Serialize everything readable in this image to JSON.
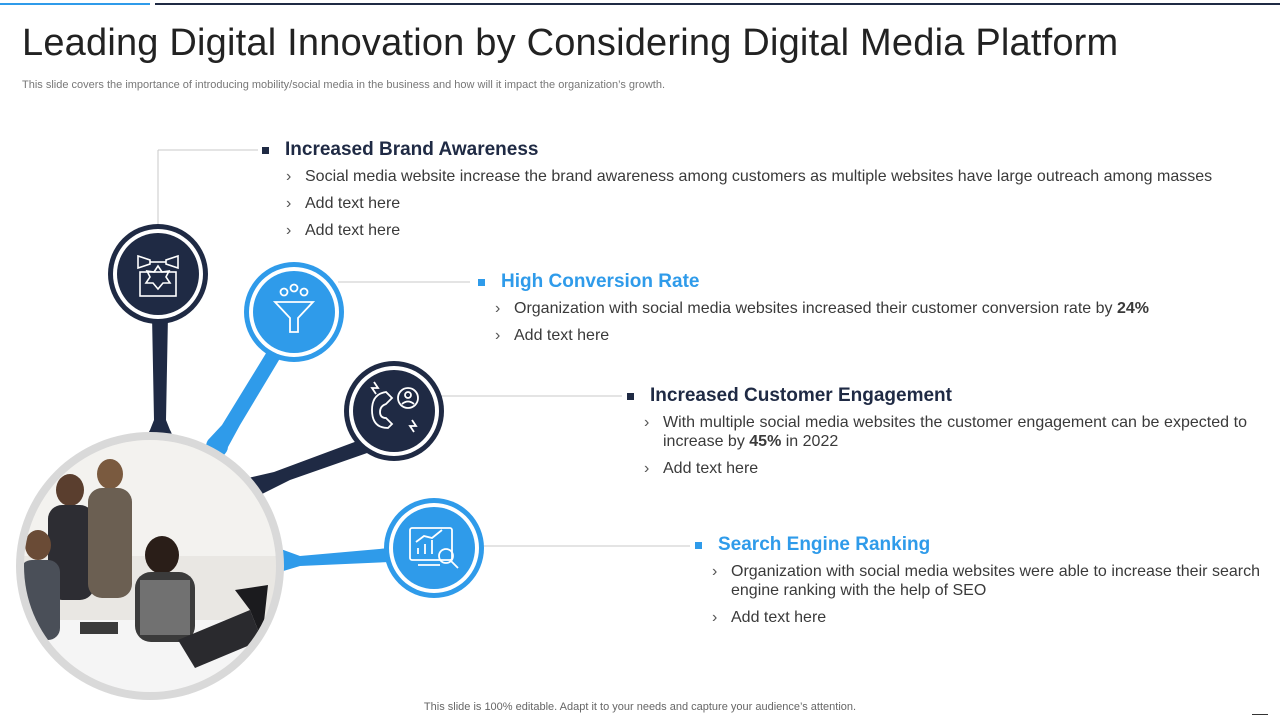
{
  "header": {
    "title": "Leading Digital Innovation by Considering Digital Media Platform",
    "subtitle": "This slide covers the importance of introducing mobility/social media in the business and how will it impact the organization’s growth."
  },
  "sections": [
    {
      "title": "Increased Brand Awareness",
      "color": "#1f2a44",
      "icon": "megaphone-badge-icon",
      "bullets": [
        {
          "text": "Social media website increase the brand awareness among customers as multiple websites have large outreach among masses"
        },
        {
          "text": "Add text here"
        },
        {
          "text": "Add text here"
        }
      ]
    },
    {
      "title": "High Conversion Rate",
      "color": "#2f9bea",
      "icon": "funnel-icon",
      "bullets": [
        {
          "pre": "Organization with social media websites increased their customer  conversion rate by ",
          "bold": "24%",
          "post": ""
        },
        {
          "text": "Add text here"
        }
      ]
    },
    {
      "title": "Increased Customer Engagement",
      "color": "#1f2a44",
      "icon": "magnet-user-icon",
      "bullets": [
        {
          "pre": "With multiple social media websites the customer engagement can be expected to increase by ",
          "bold": "45%",
          "post": " in 2022"
        },
        {
          "text": "Add text here"
        }
      ]
    },
    {
      "title": "Search Engine Ranking",
      "color": "#2f9bea",
      "icon": "seo-chart-magnifier-icon",
      "bullets": [
        {
          "text": "Organization with social media websites were able to increase their search engine ranking with the help of SEO"
        },
        {
          "text": "Add text here"
        }
      ]
    }
  ],
  "photo": {
    "description_icon": "team-meeting-photo"
  },
  "footer": {
    "text": "This slide is 100% editable. Adapt it to your needs and capture your audience’s attention."
  },
  "colors": {
    "dark": "#1f2a44",
    "blue": "#2f9bea",
    "photo_ring": "#d9d9d9"
  }
}
